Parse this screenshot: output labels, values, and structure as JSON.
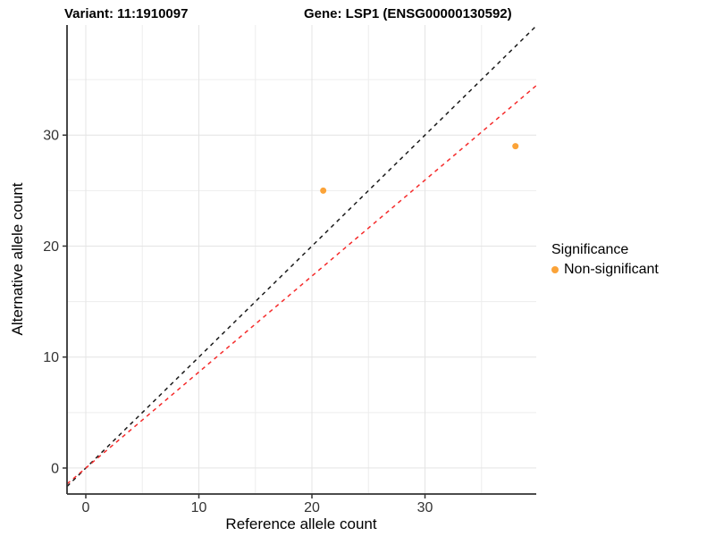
{
  "chart_data": {
    "type": "scatter",
    "titles": [
      "Variant: 11:1910097",
      "Gene: LSP1 (ENSG00000130592)"
    ],
    "xlabel": "Reference allele count",
    "ylabel": "Alternative allele count",
    "xlim": [
      -1.66,
      39.84
    ],
    "ylim": [
      -2.34,
      39.92
    ],
    "x_ticks": [
      0,
      10,
      20,
      30
    ],
    "x_minor_ticks": [
      5,
      15,
      25,
      35
    ],
    "y_ticks": [
      0,
      10,
      20,
      30
    ],
    "y_minor_ticks": [
      5,
      15,
      25,
      35
    ],
    "grid": true,
    "legend": {
      "title": "Significance",
      "position": "right"
    },
    "series": [
      {
        "name": "Non-significant",
        "color": "#FBA338",
        "points": [
          [
            21,
            25
          ],
          [
            38,
            29
          ]
        ]
      }
    ],
    "lines": [
      {
        "name": "identity-line",
        "slope": 1,
        "intercept": 0,
        "color": "#1a1a1a",
        "style": "dashed"
      },
      {
        "name": "fit-line",
        "slope": 0.865,
        "intercept": 0,
        "color": "#f52b2b",
        "style": "dashed"
      }
    ],
    "colors": {
      "background": "#ffffff",
      "grid_major": "#e4e4e4",
      "grid_minor": "#ededed",
      "axis": "#333333",
      "tick_label": "#333333",
      "point": "#FBA338"
    }
  }
}
